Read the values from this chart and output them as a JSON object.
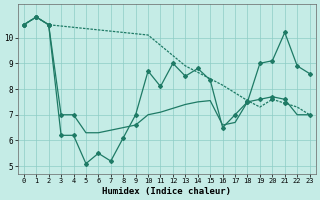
{
  "xlabel": "Humidex (Indice chaleur)",
  "bg_color": "#c5ece6",
  "grid_color": "#8ecdc5",
  "line_color": "#1e7a65",
  "xlim": [
    -0.5,
    23.5
  ],
  "ylim": [
    4.7,
    11.3
  ],
  "xticks": [
    0,
    1,
    2,
    3,
    4,
    5,
    6,
    7,
    8,
    9,
    10,
    11,
    12,
    13,
    14,
    15,
    16,
    17,
    18,
    19,
    20,
    21,
    22,
    23
  ],
  "yticks": [
    5,
    6,
    7,
    8,
    9,
    10
  ],
  "line1_x": [
    0,
    1,
    2,
    3,
    4,
    5,
    6,
    7,
    8,
    9,
    10,
    11,
    12,
    13,
    14,
    15,
    16,
    17,
    18,
    19,
    20,
    21,
    22,
    23
  ],
  "line1_y": [
    10.5,
    10.8,
    10.5,
    7.0,
    7.0,
    6.3,
    6.3,
    6.4,
    6.5,
    6.6,
    7.0,
    7.1,
    7.25,
    7.4,
    7.5,
    7.55,
    6.6,
    6.7,
    7.5,
    7.6,
    7.7,
    7.6,
    7.0,
    7.0
  ],
  "line2_x": [
    0,
    1,
    2,
    3,
    4,
    5,
    6,
    7,
    8,
    9,
    10,
    11,
    12,
    13,
    14,
    15,
    16,
    17,
    18,
    19,
    20,
    21,
    22,
    23
  ],
  "line2_y": [
    10.5,
    10.8,
    10.5,
    6.2,
    6.2,
    5.1,
    5.5,
    5.2,
    6.1,
    7.0,
    8.7,
    8.1,
    9.0,
    8.5,
    8.8,
    8.35,
    6.5,
    7.0,
    7.5,
    9.0,
    9.1,
    10.2,
    8.9,
    8.6
  ],
  "line3_x": [
    0,
    1,
    2,
    3,
    4,
    5,
    6,
    7,
    8,
    9,
    10,
    11,
    12,
    13,
    14,
    15,
    16,
    17,
    18,
    19,
    20,
    21,
    22,
    23
  ],
  "line3_y": [
    10.5,
    10.8,
    10.5,
    10.45,
    10.4,
    10.35,
    10.3,
    10.25,
    10.2,
    10.15,
    10.1,
    9.7,
    9.3,
    8.9,
    8.65,
    8.4,
    8.15,
    7.85,
    7.55,
    7.3,
    7.6,
    7.45,
    7.3,
    7.0
  ],
  "markers_line1": [
    0,
    1,
    2,
    3,
    4,
    9,
    18,
    19,
    20,
    21
  ],
  "markers_line2": [
    0,
    1,
    2,
    3,
    4,
    5,
    6,
    7,
    8,
    9,
    10,
    11,
    12,
    13,
    14,
    15,
    16,
    17,
    18,
    19,
    20,
    21,
    22,
    23
  ],
  "markers_line3": [
    0,
    1,
    2,
    18,
    20,
    21,
    23
  ]
}
